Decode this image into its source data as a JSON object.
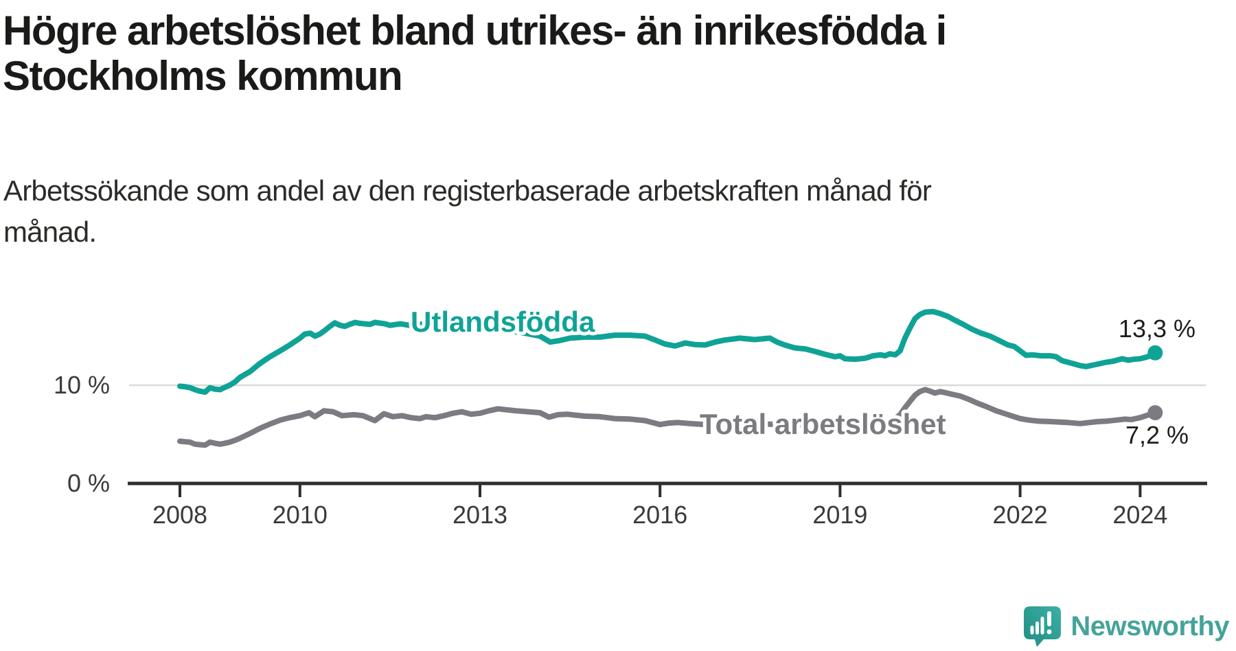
{
  "title": {
    "line1": "Högre arbetslöshet bland utrikes- än inrikesfödda i",
    "line2": "Stockholms kommun"
  },
  "subtitle": {
    "line1": "Arbetssökande som andel av den registerbaserade arbetskraften månad för",
    "line2": "månad."
  },
  "colors": {
    "teal": "#0fa396",
    "gray": "#7b7b81",
    "axis": "#2e2e2e",
    "gridline": "#d9d9d9",
    "text": "#1a1a18",
    "logo_teal": "#45a39a"
  },
  "branding": {
    "logo_text": "Newsworthy",
    "logo_icon": "speech-bubble-bar-chart-exclamation"
  },
  "chart_data": {
    "type": "line",
    "unit": "%",
    "x_axis": {
      "ticks": [
        2008,
        2010,
        2013,
        2016,
        2019,
        2022,
        2024
      ],
      "tick_labels": [
        "2008",
        "2010",
        "2013",
        "2016",
        "2019",
        "2022",
        "2024"
      ],
      "range_years": [
        2007.1,
        2025.1
      ]
    },
    "y_axis": {
      "ticks": [
        0,
        10
      ],
      "tick_labels": [
        "0 %",
        "10 %"
      ],
      "range": [
        0,
        18.5
      ],
      "gridline_at": 10
    },
    "legend_position": "inline-labels",
    "grid": "horizontal-10pct-only",
    "series": [
      {
        "name": "Utlandsfödda",
        "color": "#0fa396",
        "end_label": "13,3 %",
        "end_value": 13.3,
        "points": [
          [
            2008.0,
            9.9
          ],
          [
            2008.08,
            9.85
          ],
          [
            2008.17,
            9.75
          ],
          [
            2008.25,
            9.55
          ],
          [
            2008.33,
            9.4
          ],
          [
            2008.42,
            9.3
          ],
          [
            2008.5,
            9.75
          ],
          [
            2008.58,
            9.6
          ],
          [
            2008.67,
            9.55
          ],
          [
            2008.75,
            9.8
          ],
          [
            2008.83,
            10.0
          ],
          [
            2008.92,
            10.35
          ],
          [
            2009.0,
            10.8
          ],
          [
            2009.17,
            11.4
          ],
          [
            2009.33,
            12.2
          ],
          [
            2009.5,
            12.9
          ],
          [
            2009.67,
            13.5
          ],
          [
            2009.83,
            14.1
          ],
          [
            2010.0,
            14.8
          ],
          [
            2010.08,
            15.2
          ],
          [
            2010.17,
            15.3
          ],
          [
            2010.25,
            15.0
          ],
          [
            2010.33,
            15.2
          ],
          [
            2010.42,
            15.6
          ],
          [
            2010.5,
            16.0
          ],
          [
            2010.58,
            16.35
          ],
          [
            2010.67,
            16.1
          ],
          [
            2010.75,
            16.0
          ],
          [
            2010.83,
            16.2
          ],
          [
            2010.92,
            16.4
          ],
          [
            2011.0,
            16.3
          ],
          [
            2011.17,
            16.2
          ],
          [
            2011.25,
            16.4
          ],
          [
            2011.42,
            16.25
          ],
          [
            2011.5,
            16.1
          ],
          [
            2011.67,
            16.25
          ],
          [
            2011.83,
            16.1
          ],
          [
            2012.0,
            16.2
          ],
          [
            2012.17,
            16.35
          ],
          [
            2012.33,
            16.25
          ],
          [
            2012.5,
            16.2
          ],
          [
            2012.67,
            16.3
          ],
          [
            2012.83,
            16.1
          ],
          [
            2013.0,
            16.0
          ],
          [
            2013.25,
            15.8
          ],
          [
            2013.5,
            15.55
          ],
          [
            2013.75,
            15.3
          ],
          [
            2014.0,
            15.0
          ],
          [
            2014.17,
            14.4
          ],
          [
            2014.33,
            14.55
          ],
          [
            2014.5,
            14.8
          ],
          [
            2014.75,
            14.9
          ],
          [
            2015.0,
            14.9
          ],
          [
            2015.25,
            15.1
          ],
          [
            2015.5,
            15.1
          ],
          [
            2015.75,
            15.0
          ],
          [
            2015.92,
            14.6
          ],
          [
            2016.08,
            14.2
          ],
          [
            2016.25,
            14.0
          ],
          [
            2016.42,
            14.3
          ],
          [
            2016.58,
            14.15
          ],
          [
            2016.75,
            14.1
          ],
          [
            2016.92,
            14.4
          ],
          [
            2017.08,
            14.6
          ],
          [
            2017.33,
            14.8
          ],
          [
            2017.58,
            14.65
          ],
          [
            2017.83,
            14.8
          ],
          [
            2017.95,
            14.4
          ],
          [
            2018.08,
            14.1
          ],
          [
            2018.25,
            13.8
          ],
          [
            2018.42,
            13.7
          ],
          [
            2018.58,
            13.45
          ],
          [
            2018.75,
            13.15
          ],
          [
            2018.92,
            12.9
          ],
          [
            2019.0,
            13.0
          ],
          [
            2019.08,
            12.7
          ],
          [
            2019.25,
            12.65
          ],
          [
            2019.42,
            12.75
          ],
          [
            2019.55,
            13.0
          ],
          [
            2019.67,
            13.1
          ],
          [
            2019.75,
            13.0
          ],
          [
            2019.83,
            13.2
          ],
          [
            2019.92,
            13.1
          ],
          [
            2020.0,
            13.5
          ],
          [
            2020.08,
            14.8
          ],
          [
            2020.17,
            15.9
          ],
          [
            2020.25,
            16.8
          ],
          [
            2020.33,
            17.2
          ],
          [
            2020.42,
            17.45
          ],
          [
            2020.55,
            17.5
          ],
          [
            2020.67,
            17.3
          ],
          [
            2020.8,
            17.0
          ],
          [
            2020.92,
            16.6
          ],
          [
            2021.05,
            16.2
          ],
          [
            2021.2,
            15.7
          ],
          [
            2021.35,
            15.3
          ],
          [
            2021.5,
            15.0
          ],
          [
            2021.65,
            14.55
          ],
          [
            2021.8,
            14.1
          ],
          [
            2021.9,
            13.95
          ],
          [
            2022.0,
            13.5
          ],
          [
            2022.1,
            13.05
          ],
          [
            2022.2,
            13.1
          ],
          [
            2022.35,
            13.0
          ],
          [
            2022.5,
            13.0
          ],
          [
            2022.6,
            12.9
          ],
          [
            2022.7,
            12.5
          ],
          [
            2022.85,
            12.25
          ],
          [
            2023.0,
            12.0
          ],
          [
            2023.1,
            11.9
          ],
          [
            2023.25,
            12.1
          ],
          [
            2023.4,
            12.3
          ],
          [
            2023.55,
            12.45
          ],
          [
            2023.7,
            12.7
          ],
          [
            2023.8,
            12.55
          ],
          [
            2023.9,
            12.65
          ],
          [
            2024.0,
            12.7
          ],
          [
            2024.1,
            12.85
          ],
          [
            2024.17,
            13.0
          ],
          [
            2024.25,
            13.3
          ]
        ]
      },
      {
        "name": "Total arbetslöshet",
        "color": "#7b7b81",
        "end_label": "7,2 %",
        "end_value": 7.2,
        "points": [
          [
            2008.0,
            4.3
          ],
          [
            2008.08,
            4.25
          ],
          [
            2008.17,
            4.2
          ],
          [
            2008.25,
            4.0
          ],
          [
            2008.33,
            3.95
          ],
          [
            2008.42,
            3.9
          ],
          [
            2008.5,
            4.2
          ],
          [
            2008.58,
            4.1
          ],
          [
            2008.67,
            4.0
          ],
          [
            2008.75,
            4.1
          ],
          [
            2008.83,
            4.2
          ],
          [
            2008.92,
            4.4
          ],
          [
            2009.0,
            4.6
          ],
          [
            2009.17,
            5.1
          ],
          [
            2009.33,
            5.6
          ],
          [
            2009.5,
            6.05
          ],
          [
            2009.67,
            6.45
          ],
          [
            2009.83,
            6.7
          ],
          [
            2010.0,
            6.9
          ],
          [
            2010.15,
            7.2
          ],
          [
            2010.25,
            6.8
          ],
          [
            2010.4,
            7.4
          ],
          [
            2010.55,
            7.3
          ],
          [
            2010.7,
            6.9
          ],
          [
            2010.9,
            7.0
          ],
          [
            2011.05,
            6.9
          ],
          [
            2011.25,
            6.4
          ],
          [
            2011.4,
            7.1
          ],
          [
            2011.55,
            6.8
          ],
          [
            2011.7,
            6.9
          ],
          [
            2011.85,
            6.7
          ],
          [
            2012.0,
            6.6
          ],
          [
            2012.1,
            6.8
          ],
          [
            2012.25,
            6.7
          ],
          [
            2012.4,
            6.9
          ],
          [
            2012.55,
            7.15
          ],
          [
            2012.7,
            7.3
          ],
          [
            2012.85,
            7.05
          ],
          [
            2013.0,
            7.15
          ],
          [
            2013.15,
            7.4
          ],
          [
            2013.3,
            7.6
          ],
          [
            2013.45,
            7.5
          ],
          [
            2013.6,
            7.4
          ],
          [
            2013.8,
            7.3
          ],
          [
            2014.0,
            7.2
          ],
          [
            2014.15,
            6.75
          ],
          [
            2014.3,
            7.0
          ],
          [
            2014.45,
            7.05
          ],
          [
            2014.6,
            6.95
          ],
          [
            2014.75,
            6.85
          ],
          [
            2015.0,
            6.8
          ],
          [
            2015.25,
            6.6
          ],
          [
            2015.5,
            6.55
          ],
          [
            2015.75,
            6.4
          ],
          [
            2016.0,
            6.0
          ],
          [
            2016.15,
            6.15
          ],
          [
            2016.3,
            6.2
          ],
          [
            2016.5,
            6.1
          ],
          [
            2016.75,
            6.0
          ],
          [
            2017.0,
            6.1
          ],
          [
            2017.25,
            6.0
          ],
          [
            2017.5,
            5.95
          ],
          [
            2017.75,
            6.05
          ],
          [
            2018.0,
            6.0
          ],
          [
            2018.25,
            5.95
          ],
          [
            2018.5,
            6.0
          ],
          [
            2018.75,
            6.05
          ],
          [
            2019.0,
            6.0
          ],
          [
            2019.25,
            6.1
          ],
          [
            2019.5,
            6.15
          ],
          [
            2019.75,
            6.2
          ],
          [
            2019.9,
            6.5
          ],
          [
            2020.0,
            7.0
          ],
          [
            2020.08,
            7.7
          ],
          [
            2020.17,
            8.4
          ],
          [
            2020.25,
            9.0
          ],
          [
            2020.33,
            9.35
          ],
          [
            2020.42,
            9.55
          ],
          [
            2020.5,
            9.4
          ],
          [
            2020.58,
            9.2
          ],
          [
            2020.67,
            9.35
          ],
          [
            2020.75,
            9.25
          ],
          [
            2020.85,
            9.1
          ],
          [
            2021.0,
            8.9
          ],
          [
            2021.15,
            8.55
          ],
          [
            2021.3,
            8.15
          ],
          [
            2021.45,
            7.8
          ],
          [
            2021.6,
            7.4
          ],
          [
            2021.75,
            7.1
          ],
          [
            2021.9,
            6.8
          ],
          [
            2022.0,
            6.6
          ],
          [
            2022.15,
            6.45
          ],
          [
            2022.3,
            6.35
          ],
          [
            2022.5,
            6.3
          ],
          [
            2022.65,
            6.25
          ],
          [
            2022.8,
            6.2
          ],
          [
            2023.0,
            6.1
          ],
          [
            2023.15,
            6.2
          ],
          [
            2023.3,
            6.3
          ],
          [
            2023.45,
            6.35
          ],
          [
            2023.6,
            6.45
          ],
          [
            2023.75,
            6.55
          ],
          [
            2023.85,
            6.5
          ],
          [
            2024.0,
            6.7
          ],
          [
            2024.1,
            6.9
          ],
          [
            2024.17,
            7.05
          ],
          [
            2024.25,
            7.2
          ]
        ]
      }
    ]
  }
}
